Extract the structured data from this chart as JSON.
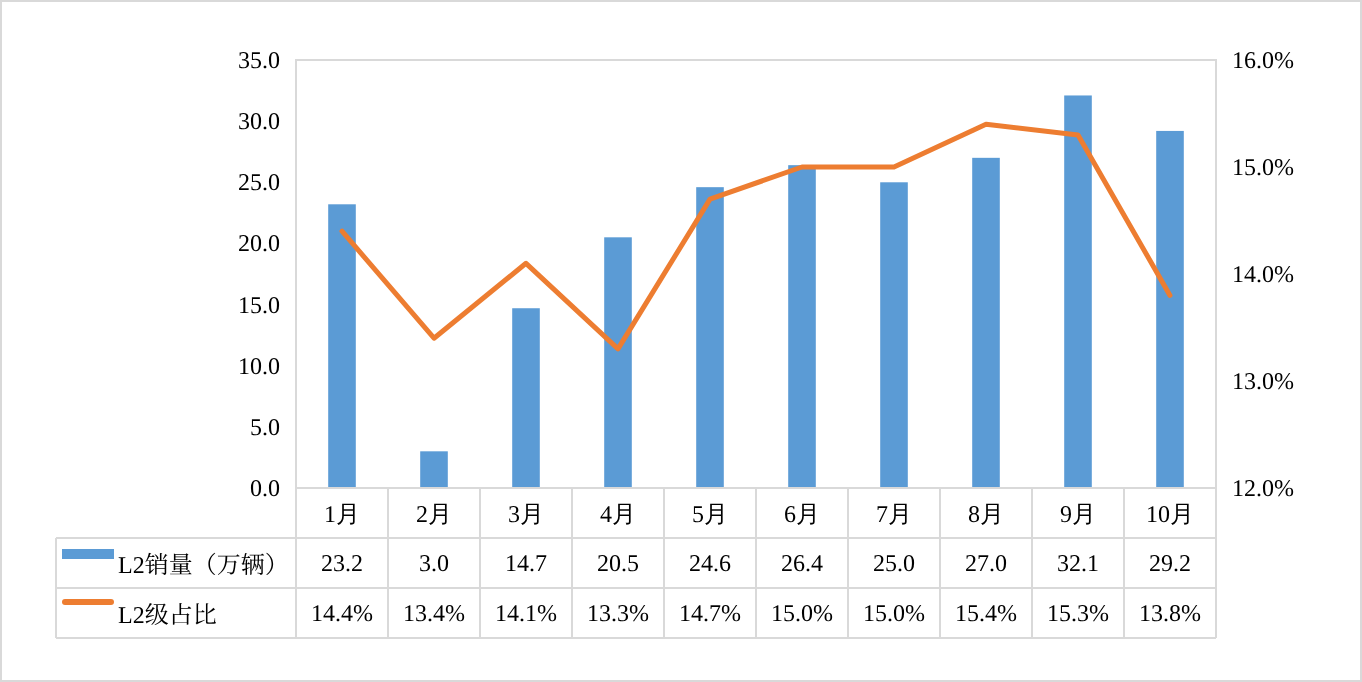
{
  "chart_data": {
    "type": "bar",
    "categories": [
      "1月",
      "2月",
      "3月",
      "4月",
      "5月",
      "6月",
      "7月",
      "8月",
      "9月",
      "10月"
    ],
    "series": [
      {
        "name": "L2销量（万辆）",
        "color": "#5b9bd5",
        "values": [
          23.2,
          3.0,
          14.7,
          20.5,
          24.6,
          26.4,
          25.0,
          27.0,
          32.1,
          29.2
        ],
        "value_labels": [
          "23.2",
          "3.0",
          "14.7",
          "20.5",
          "24.6",
          "26.4",
          "25.0",
          "27.0",
          "32.1",
          "29.2"
        ]
      },
      {
        "name": "L2级占比",
        "type": "line",
        "axis": "y2",
        "color": "#ed7d31",
        "values": [
          14.4,
          13.4,
          14.1,
          13.3,
          14.7,
          15.0,
          15.0,
          15.4,
          15.3,
          13.8
        ],
        "value_labels": [
          "14.4%",
          "13.4%",
          "14.1%",
          "13.3%",
          "14.7%",
          "15.0%",
          "15.0%",
          "15.4%",
          "15.3%",
          "13.8%"
        ]
      }
    ],
    "ylim": [
      0,
      35
    ],
    "yticks": [
      {
        "value": 0,
        "label": "0.0"
      },
      {
        "value": 5,
        "label": "5.0"
      },
      {
        "value": 10,
        "label": "10.0"
      },
      {
        "value": 15,
        "label": "15.0"
      },
      {
        "value": 20,
        "label": "20.0"
      },
      {
        "value": 25,
        "label": "25.0"
      },
      {
        "value": 30,
        "label": "30.0"
      },
      {
        "value": 35,
        "label": "35.0"
      }
    ],
    "y2lim": [
      12,
      16
    ],
    "y2ticks": [
      {
        "value": 12,
        "label": "12.0%"
      },
      {
        "value": 13,
        "label": "13.0%"
      },
      {
        "value": 14,
        "label": "14.0%"
      },
      {
        "value": 15,
        "label": "15.0%"
      },
      {
        "value": 16,
        "label": "16.0%"
      }
    ],
    "grid": false,
    "legend": "bottom"
  }
}
